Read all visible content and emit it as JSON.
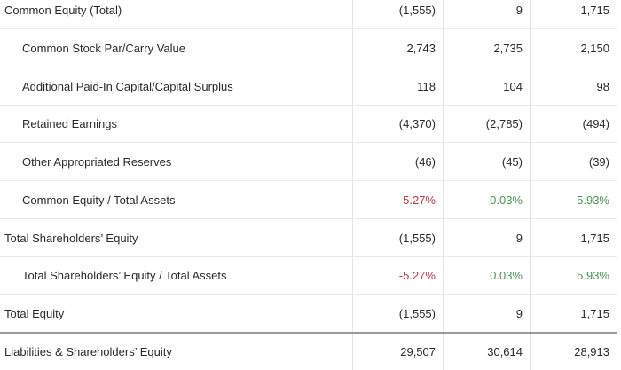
{
  "colors": {
    "text": "#2a2a2a",
    "negative_percent": "#b23b3e",
    "positive_percent": "#4e9155",
    "grid_horizontal": "#e9e9e9",
    "grid_vertical": "#e4e4e4",
    "grid_strong": "#9a9a9a",
    "background": "#ffffff"
  },
  "table": {
    "rows": [
      {
        "label": "Common Equity (Total)",
        "indent": false,
        "values": [
          "(1,555)",
          "9",
          "1,715"
        ],
        "tones": [
          "default",
          "default",
          "default"
        ]
      },
      {
        "label": "Common Stock Par/Carry Value",
        "indent": true,
        "values": [
          "2,743",
          "2,735",
          "2,150"
        ],
        "tones": [
          "default",
          "default",
          "default"
        ]
      },
      {
        "label": "Additional Paid-In Capital/Capital Surplus",
        "indent": true,
        "values": [
          "118",
          "104",
          "98"
        ],
        "tones": [
          "default",
          "default",
          "default"
        ]
      },
      {
        "label": "Retained Earnings",
        "indent": true,
        "values": [
          "(4,370)",
          "(2,785)",
          "(494)"
        ],
        "tones": [
          "default",
          "default",
          "default"
        ]
      },
      {
        "label": "Other Appropriated Reserves",
        "indent": true,
        "values": [
          "(46)",
          "(45)",
          "(39)"
        ],
        "tones": [
          "default",
          "default",
          "default"
        ]
      },
      {
        "label": "Common Equity / Total Assets",
        "indent": true,
        "values": [
          "-5.27%",
          "0.03%",
          "5.93%"
        ],
        "tones": [
          "down",
          "up",
          "up"
        ]
      },
      {
        "label": "Total Shareholders’ Equity",
        "indent": false,
        "values": [
          "(1,555)",
          "9",
          "1,715"
        ],
        "tones": [
          "default",
          "default",
          "default"
        ]
      },
      {
        "label": "Total Shareholders’ Equity / Total Assets",
        "indent": true,
        "values": [
          "-5.27%",
          "0.03%",
          "5.93%"
        ],
        "tones": [
          "down",
          "up",
          "up"
        ]
      },
      {
        "label": "Total Equity",
        "indent": false,
        "values": [
          "(1,555)",
          "9",
          "1,715"
        ],
        "tones": [
          "default",
          "default",
          "default"
        ]
      },
      {
        "label": "Liabilities & Shareholders’ Equity",
        "indent": false,
        "values": [
          "29,507",
          "30,614",
          "28,913"
        ],
        "tones": [
          "default",
          "default",
          "default"
        ]
      }
    ]
  }
}
